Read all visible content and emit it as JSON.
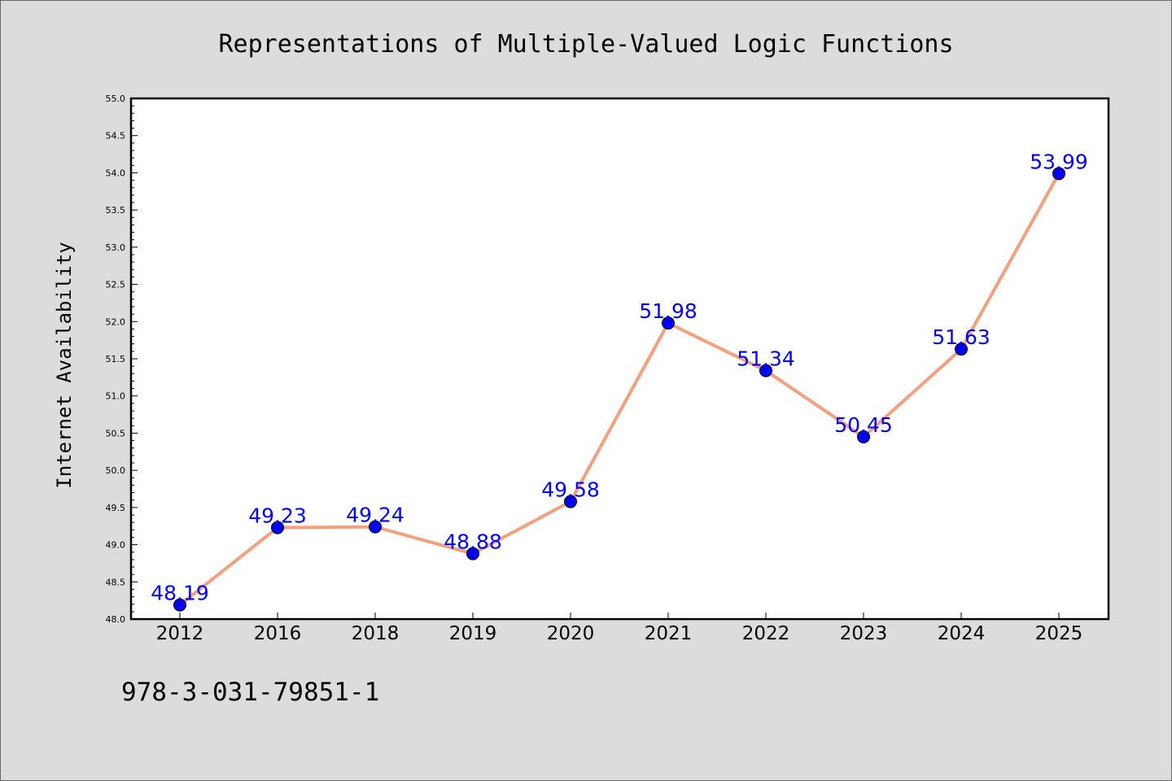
{
  "chart_data": {
    "type": "line",
    "title": "Representations of Multiple-Valued Logic Functions",
    "xlabel": "",
    "ylabel": "Internet Availability",
    "categories": [
      "2012",
      "2016",
      "2018",
      "2019",
      "2020",
      "2021",
      "2022",
      "2023",
      "2024",
      "2025"
    ],
    "series": [
      {
        "values": [
          48.19,
          49.23,
          49.24,
          48.88,
          49.58,
          51.98,
          51.34,
          50.45,
          51.63,
          53.99
        ],
        "data_labels": [
          "48.19",
          "49.23",
          "49.24",
          "48.88",
          "49.58",
          "51.98",
          "51.34",
          "50.45",
          "51.63",
          "53.99"
        ],
        "line_color": "#f4a07c",
        "marker_color": "#0000ee"
      }
    ],
    "ylim": [
      48.0,
      55.0
    ],
    "yticks": [
      "48.0",
      "48.5",
      "49.0",
      "49.5",
      "50.0",
      "50.5",
      "51.0",
      "51.5",
      "52.0",
      "52.5",
      "53.0",
      "53.5",
      "54.0",
      "54.5",
      "55.0"
    ],
    "grid": false,
    "legend": "none",
    "label_color": "#0000ff",
    "background_color": "#dcdcdc",
    "plot_background": "#ffffff"
  },
  "footer": {
    "text": "978-3-031-79851-1"
  }
}
